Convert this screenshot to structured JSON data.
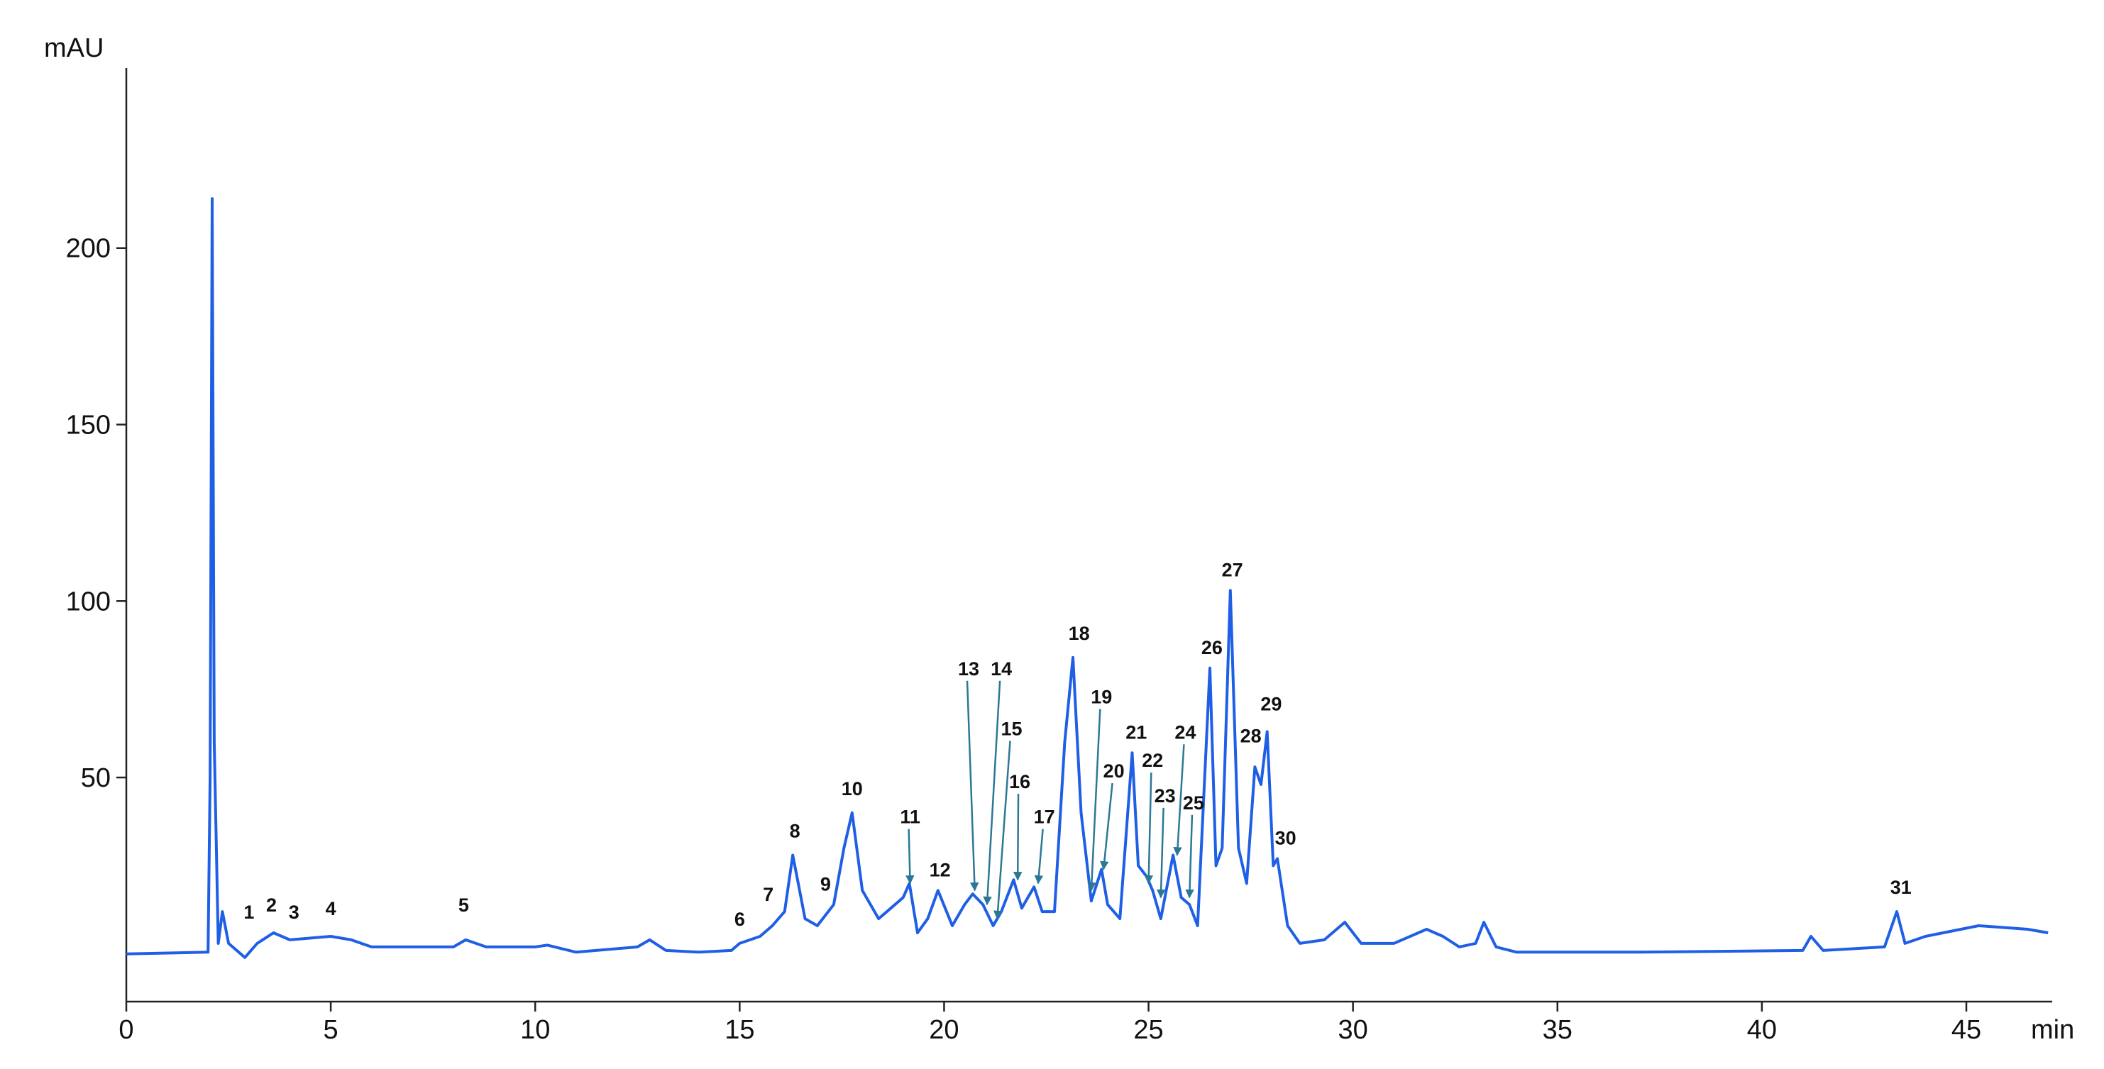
{
  "chart_data": {
    "type": "line",
    "x_label": "min",
    "y_label": "mAU",
    "x": [
      0,
      2.0,
      2.05,
      2.1,
      2.15,
      2.25,
      2.35,
      2.5,
      2.9,
      3.2,
      3.6,
      4.0,
      5.0,
      5.5,
      6,
      8,
      8.3,
      8.8,
      10,
      10.3,
      11,
      12.5,
      12.8,
      13.2,
      14,
      14.8,
      15,
      15.5,
      15.8,
      16.1,
      16.3,
      16.6,
      16.9,
      17.3,
      17.55,
      17.75,
      18.0,
      18.4,
      18.7,
      19.0,
      19.15,
      19.35,
      19.6,
      19.85,
      20.2,
      20.5,
      20.7,
      20.95,
      21.2,
      21.4,
      21.7,
      21.9,
      22.2,
      22.4,
      22.7,
      22.95,
      23.15,
      23.35,
      23.6,
      23.85,
      24.0,
      24.3,
      24.6,
      24.75,
      24.95,
      25.1,
      25.3,
      25.6,
      25.8,
      26.0,
      26.2,
      26.5,
      26.65,
      26.8,
      27.0,
      27.2,
      27.4,
      27.6,
      27.75,
      27.9,
      28.05,
      28.15,
      28.4,
      28.7,
      29.3,
      29.8,
      30.2,
      31,
      31.8,
      32.2,
      32.6,
      33.0,
      33.2,
      33.5,
      34,
      37,
      41,
      41.2,
      41.5,
      43.0,
      43.3,
      43.5,
      44,
      45.3,
      46.5,
      47
    ],
    "values": [
      0,
      0.5,
      50,
      214,
      60,
      3,
      12,
      3,
      -1,
      3,
      6,
      4,
      5,
      4,
      2,
      2,
      4,
      2,
      2,
      2.5,
      0.5,
      2,
      4,
      1,
      0.5,
      1,
      3,
      5,
      8,
      12,
      28,
      10,
      8,
      14,
      30,
      40,
      18,
      10,
      13,
      16,
      20,
      6,
      10,
      18,
      8,
      14,
      17,
      14,
      8,
      12,
      21,
      13,
      19,
      12,
      12,
      60,
      84,
      40,
      15,
      24,
      14,
      10,
      57,
      25,
      22,
      18,
      10,
      28,
      16,
      14,
      8,
      81,
      25,
      30,
      103,
      30,
      20,
      53,
      48,
      63,
      25,
      27,
      8,
      3,
      4,
      9,
      3,
      3,
      7,
      5,
      2,
      3,
      9,
      2,
      0.5,
      0.5,
      1,
      5,
      1,
      2,
      12,
      3,
      5,
      8,
      7,
      6
    ],
    "color": "#1f5fe6",
    "arrow_color": "#2b7896",
    "xlim": [
      0,
      47.1
    ],
    "ylim": [
      -13.5,
      251
    ],
    "xticks": [
      0,
      5,
      10,
      15,
      20,
      25,
      30,
      35,
      40,
      45
    ],
    "yticks": [
      50,
      100,
      150,
      200
    ],
    "annotations": [
      {
        "text": "1",
        "x": 3.0,
        "y": 10
      },
      {
        "text": "2",
        "x": 3.55,
        "y": 12
      },
      {
        "text": "3",
        "x": 4.1,
        "y": 10
      },
      {
        "text": "4",
        "x": 5.0,
        "y": 11
      },
      {
        "text": "5",
        "x": 8.25,
        "y": 12
      },
      {
        "text": "6",
        "x": 15.0,
        "y": 8
      },
      {
        "text": "7",
        "x": 15.7,
        "y": 15
      },
      {
        "text": "8",
        "x": 16.35,
        "y": 33
      },
      {
        "text": "9",
        "x": 17.1,
        "y": 18
      },
      {
        "text": "10",
        "x": 17.75,
        "y": 45
      },
      {
        "text": "11",
        "x": 19.17,
        "y": 37,
        "xy": [
          19.17,
          20
        ]
      },
      {
        "text": "12",
        "x": 19.9,
        "y": 22
      },
      {
        "text": "13",
        "x": 20.6,
        "y": 79,
        "xy": [
          20.75,
          18
        ]
      },
      {
        "text": "14",
        "x": 21.4,
        "y": 79,
        "xy": [
          21.05,
          14
        ]
      },
      {
        "text": "15",
        "x": 21.65,
        "y": 62,
        "xy": [
          21.3,
          10
        ]
      },
      {
        "text": "16",
        "x": 21.85,
        "y": 47,
        "xy": [
          21.8,
          21
        ]
      },
      {
        "text": "17",
        "x": 22.45,
        "y": 37,
        "xy": [
          22.3,
          20
        ]
      },
      {
        "text": "18",
        "x": 23.3,
        "y": 89
      },
      {
        "text": "19",
        "x": 23.85,
        "y": 71,
        "xy": [
          23.6,
          18
        ]
      },
      {
        "text": "20",
        "x": 24.15,
        "y": 50,
        "xy": [
          23.9,
          24
        ]
      },
      {
        "text": "21",
        "x": 24.7,
        "y": 61
      },
      {
        "text": "22",
        "x": 25.1,
        "y": 53,
        "xy": [
          25.0,
          20
        ]
      },
      {
        "text": "23",
        "x": 25.4,
        "y": 43,
        "xy": [
          25.3,
          16
        ]
      },
      {
        "text": "24",
        "x": 25.9,
        "y": 61,
        "xy": [
          25.7,
          28
        ]
      },
      {
        "text": "25",
        "x": 26.1,
        "y": 41,
        "xy": [
          26.0,
          16
        ]
      },
      {
        "text": "26",
        "x": 26.55,
        "y": 85
      },
      {
        "text": "27",
        "x": 27.05,
        "y": 107
      },
      {
        "text": "28",
        "x": 27.5,
        "y": 60
      },
      {
        "text": "29",
        "x": 28.0,
        "y": 69
      },
      {
        "text": "30",
        "x": 28.35,
        "y": 31
      },
      {
        "text": "31",
        "x": 43.4,
        "y": 17
      }
    ]
  }
}
